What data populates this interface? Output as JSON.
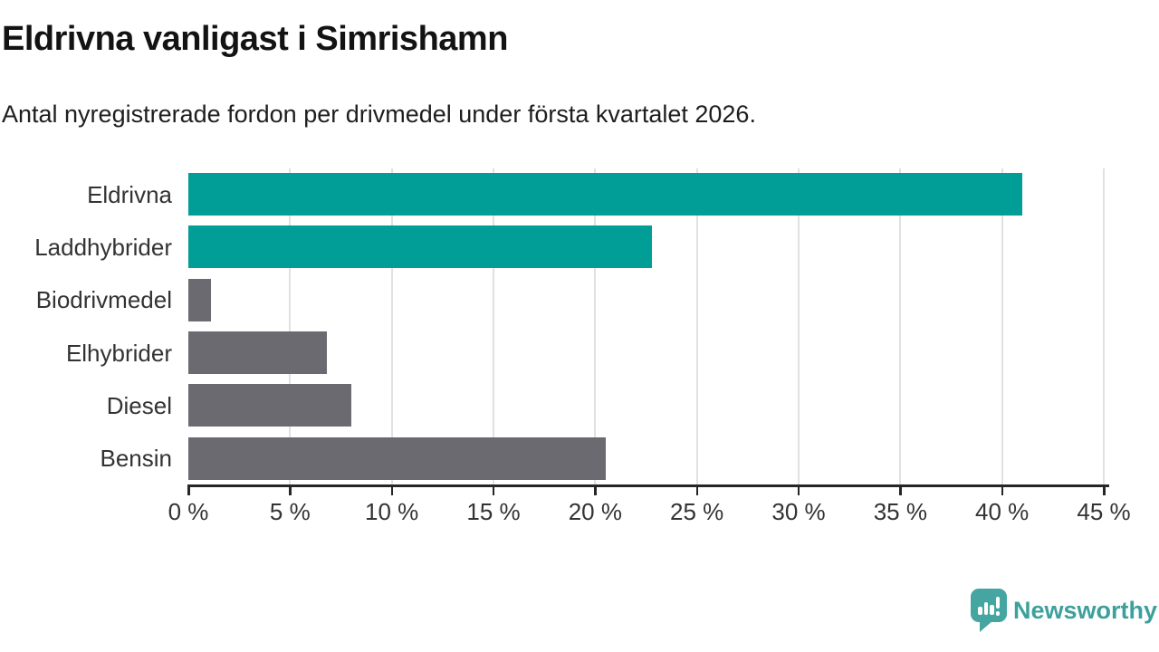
{
  "header": {
    "title": "Eldrivna vanligast i Simrishamn",
    "subtitle": "Antal nyregistrerade fordon per drivmedel under första kvartalet 2026."
  },
  "chart_data": {
    "type": "bar",
    "orientation": "horizontal",
    "title": "Eldrivna vanligast i Simrishamn",
    "subtitle": "Antal nyregistrerade fordon per drivmedel under första kvartalet 2026.",
    "categories": [
      "Eldrivna",
      "Laddhybrider",
      "Biodrivmedel",
      "Elhybrider",
      "Diesel",
      "Bensin"
    ],
    "values": [
      41.0,
      22.8,
      1.1,
      6.8,
      8.0,
      20.5
    ],
    "unit": "%",
    "xlim": [
      0,
      45
    ],
    "x_tick_step": 5,
    "x_tick_labels": [
      "0 %",
      "5 %",
      "10 %",
      "15 %",
      "20 %",
      "25 %",
      "30 %",
      "35 %",
      "40 %",
      "45 %"
    ],
    "grid": true,
    "legend": "none",
    "bar_colors": [
      "#009e97",
      "#009e97",
      "#6b6a70",
      "#6b6a70",
      "#6b6a70",
      "#6b6a70"
    ]
  },
  "colors": {
    "highlight_bar": "#009e97",
    "default_bar": "#6b6a70",
    "gridline": "#e1e1e1",
    "axis": "#262626",
    "text_dark": "#131313",
    "text_label": "#333333",
    "brand_teal": "#44a5a1",
    "brand_text_teal": "#3da09d",
    "background": "#ffffff"
  },
  "footer": {
    "brand": "Newsworthy",
    "brand_icon": "newsworthy-speech-bubble-chart-icon"
  }
}
